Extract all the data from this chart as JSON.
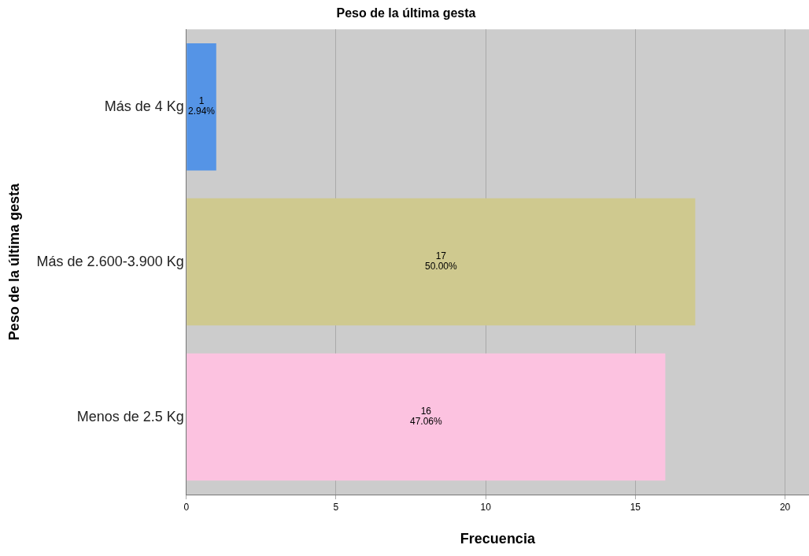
{
  "chart_data": {
    "type": "bar",
    "orientation": "horizontal",
    "title": "Peso de la última gesta",
    "xlabel": "Frecuencia",
    "ylabel": "Peso de la última gesta",
    "categories": [
      "Más de 4 Kg",
      "Más de 2.600-3.900 Kg",
      "Menos de 2.5 Kg"
    ],
    "values": [
      1,
      17,
      16
    ],
    "colors": [
      "#5594e6",
      "#cfc98f",
      "#fcc2e0"
    ],
    "value_labels": [
      "1\n2.94%",
      "17\n50.00%",
      "16\n47.06%"
    ],
    "xlim": [
      0,
      20.8
    ],
    "xticks": [
      0,
      5,
      10,
      15,
      20
    ],
    "grid": "x",
    "legend": false
  }
}
